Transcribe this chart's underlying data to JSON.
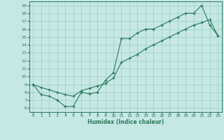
{
  "line1_x": [
    0,
    1,
    2,
    3,
    4,
    5,
    6,
    7,
    8,
    9,
    10,
    11,
    12,
    13,
    14,
    15,
    16,
    17,
    18,
    19,
    20,
    21,
    22,
    23
  ],
  "line1_y": [
    9.0,
    7.7,
    7.5,
    7.0,
    6.2,
    6.2,
    8.0,
    7.8,
    8.0,
    9.5,
    10.5,
    14.8,
    14.8,
    15.5,
    16.0,
    16.0,
    16.5,
    17.0,
    17.5,
    18.0,
    18.0,
    19.0,
    16.5,
    15.2
  ],
  "line2_x": [
    0,
    1,
    2,
    3,
    4,
    5,
    6,
    7,
    8,
    9,
    10,
    11,
    12,
    13,
    14,
    15,
    16,
    17,
    18,
    19,
    20,
    21,
    22,
    23
  ],
  "line2_y": [
    9.0,
    8.6,
    8.3,
    8.0,
    7.7,
    7.5,
    8.2,
    8.5,
    8.8,
    9.1,
    9.8,
    11.8,
    12.3,
    12.8,
    13.5,
    14.0,
    14.5,
    15.0,
    15.5,
    16.0,
    16.5,
    16.8,
    17.2,
    15.2
  ],
  "line_color": "#2a7a5a",
  "bg_color": "#c5e8e5",
  "grid_color": "#9eccc8",
  "xlabel": "Humidex (Indice chaleur)",
  "xlim": [
    -0.5,
    23.5
  ],
  "ylim": [
    5.5,
    19.5
  ],
  "xticks": [
    0,
    1,
    2,
    3,
    4,
    5,
    6,
    7,
    8,
    9,
    10,
    11,
    12,
    13,
    14,
    15,
    16,
    17,
    18,
    19,
    20,
    21,
    22,
    23
  ],
  "yticks": [
    6,
    7,
    8,
    9,
    10,
    11,
    12,
    13,
    14,
    15,
    16,
    17,
    18,
    19
  ]
}
